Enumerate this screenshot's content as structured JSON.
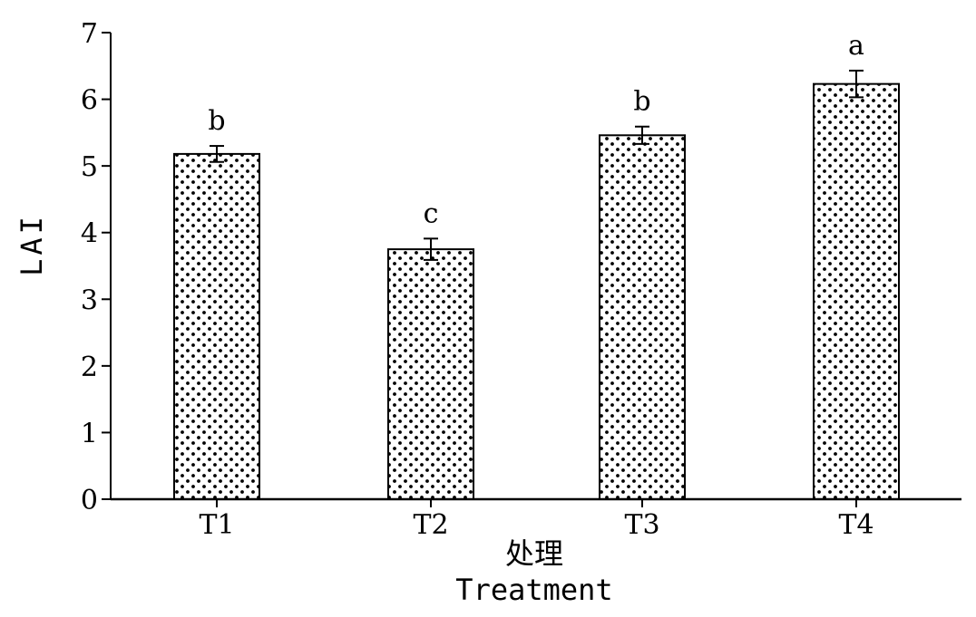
{
  "chart_data": {
    "type": "bar",
    "categories": [
      "T1",
      "T2",
      "T3",
      "T4"
    ],
    "values": [
      5.18,
      3.75,
      5.46,
      6.23
    ],
    "errors": [
      0.12,
      0.16,
      0.13,
      0.2
    ],
    "significance": [
      "b",
      "c",
      "b",
      "a"
    ],
    "ylabel": "LAI",
    "xlabel": "处理",
    "xlabel_en": "Treatment",
    "ylim": [
      0,
      7
    ],
    "yticks": [
      "0",
      "1",
      "2",
      "3",
      "4",
      "5",
      "6",
      "7"
    ],
    "bar_fill": "dotted pattern",
    "grid": false,
    "legend": "none"
  }
}
